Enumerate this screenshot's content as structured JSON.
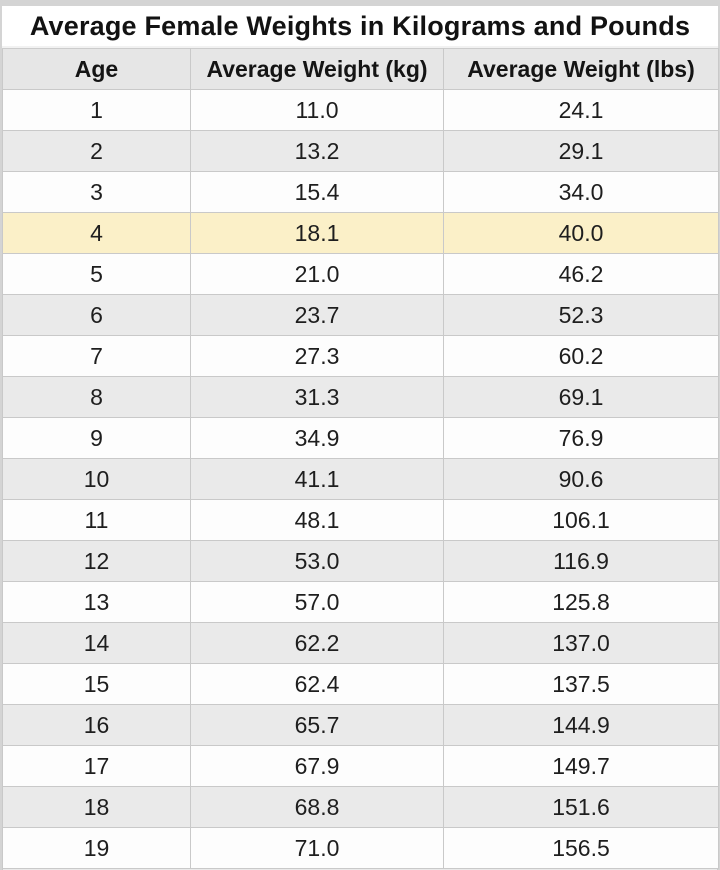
{
  "title": "Average Female Weights in Kilograms and Pounds",
  "chart_data": {
    "type": "table",
    "title": "Average Female Weights in Kilograms and Pounds",
    "columns": [
      "Age",
      "Average Weight (kg)",
      "Average Weight (lbs)"
    ],
    "rows": [
      {
        "age": "1",
        "kg": "11.0",
        "lbs": "24.1"
      },
      {
        "age": "2",
        "kg": "13.2",
        "lbs": "29.1"
      },
      {
        "age": "3",
        "kg": "15.4",
        "lbs": "34.0"
      },
      {
        "age": "4",
        "kg": "18.1",
        "lbs": "40.0"
      },
      {
        "age": "5",
        "kg": "21.0",
        "lbs": "46.2"
      },
      {
        "age": "6",
        "kg": "23.7",
        "lbs": "52.3"
      },
      {
        "age": "7",
        "kg": "27.3",
        "lbs": "60.2"
      },
      {
        "age": "8",
        "kg": "31.3",
        "lbs": "69.1"
      },
      {
        "age": "9",
        "kg": "34.9",
        "lbs": "76.9"
      },
      {
        "age": "10",
        "kg": "41.1",
        "lbs": "90.6"
      },
      {
        "age": "11",
        "kg": "48.1",
        "lbs": "106.1"
      },
      {
        "age": "12",
        "kg": "53.0",
        "lbs": "116.9"
      },
      {
        "age": "13",
        "kg": "57.0",
        "lbs": "125.8"
      },
      {
        "age": "14",
        "kg": "62.2",
        "lbs": "137.0"
      },
      {
        "age": "15",
        "kg": "62.4",
        "lbs": "137.5"
      },
      {
        "age": "16",
        "kg": "65.7",
        "lbs": "144.9"
      },
      {
        "age": "17",
        "kg": "67.9",
        "lbs": "149.7"
      },
      {
        "age": "18",
        "kg": "68.8",
        "lbs": "151.6"
      },
      {
        "age": "19",
        "kg": "71.0",
        "lbs": "156.5"
      }
    ],
    "highlighted_age": "4",
    "layout": {
      "striped": true,
      "grid": true
    }
  },
  "colors": {
    "page_background": "#d4d4d4",
    "row_white": "#fdfdfd",
    "row_alt": "#eaeaea",
    "header_background": "#e6e6e6",
    "highlight_row": "#fbf0c8",
    "border": "#c9c9c9",
    "text": "#1e1e1e"
  }
}
